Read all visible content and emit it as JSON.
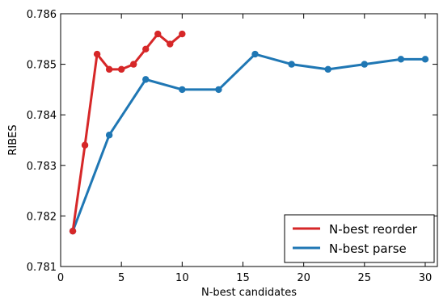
{
  "chart_data": {
    "type": "line",
    "title": "",
    "xlabel": "N-best candidates",
    "ylabel": "RIBES",
    "xlim": [
      0,
      31
    ],
    "ylim": [
      0.781,
      0.786
    ],
    "xticks": [
      0,
      5,
      10,
      15,
      20,
      25,
      30
    ],
    "xtick_labels": [
      "0",
      "5",
      "10",
      "15",
      "20",
      "25",
      "30"
    ],
    "yticks": [
      0.781,
      0.782,
      0.783,
      0.784,
      0.785,
      0.786
    ],
    "ytick_labels": [
      "0.781",
      "0.782",
      "0.783",
      "0.784",
      "0.785",
      "0.786"
    ],
    "grid": false,
    "legend_position": "bottom-right",
    "series": [
      {
        "name": "N-best reorder",
        "color": "#d62728",
        "x": [
          1,
          2,
          3,
          4,
          5,
          6,
          7,
          8,
          9,
          10
        ],
        "y": [
          0.7817,
          0.7834,
          0.7852,
          0.7849,
          0.7849,
          0.785,
          0.7853,
          0.7856,
          0.7854,
          0.7856
        ]
      },
      {
        "name": "N-best parse",
        "color": "#1f77b4",
        "x": [
          1,
          4,
          7,
          10,
          13,
          16,
          19,
          22,
          25,
          28,
          30
        ],
        "y": [
          0.7817,
          0.7836,
          0.7847,
          0.7845,
          0.7845,
          0.7852,
          0.785,
          0.7849,
          0.785,
          0.7851,
          0.7851
        ]
      }
    ]
  }
}
